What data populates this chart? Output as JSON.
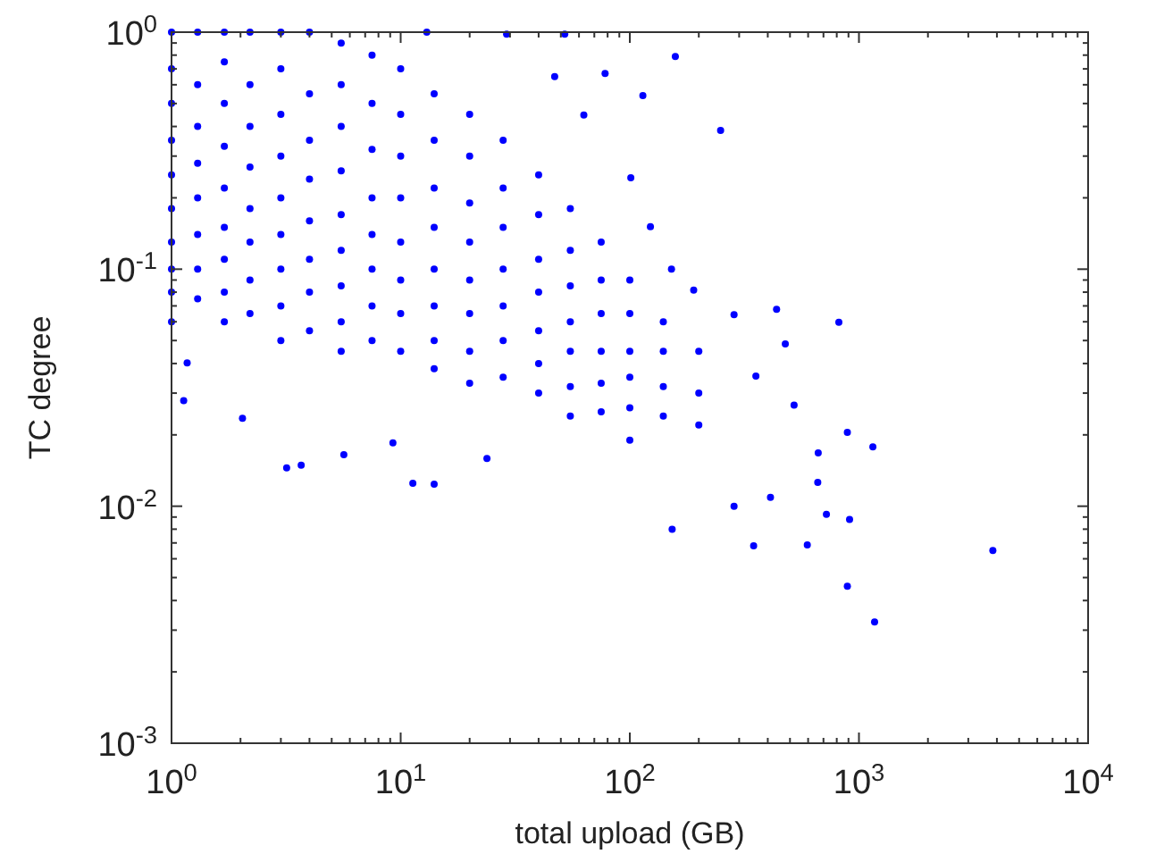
{
  "chart_data": {
    "type": "scatter",
    "xlabel": "total upload (GB)",
    "ylabel": "TC degree",
    "log": "xy",
    "marker": "circle",
    "color": "#0000ff",
    "xlim": [
      1,
      10000
    ],
    "ylim": [
      0.001,
      1
    ],
    "xticks": [
      {
        "value": 1,
        "label": "10$^{0}$"
      },
      {
        "value": 2,
        "label": null
      },
      {
        "value": 3,
        "label": null
      },
      {
        "value": 4,
        "label": null
      },
      {
        "value": 5,
        "label": null
      },
      {
        "value": 6,
        "label": null
      },
      {
        "value": 7,
        "label": null
      },
      {
        "value": 8,
        "label": null
      },
      {
        "value": 9,
        "label": null
      },
      {
        "value": 10,
        "label": "10$^{1}$"
      },
      {
        "value": 20,
        "label": null
      },
      {
        "value": 30,
        "label": null
      },
      {
        "value": 40,
        "label": null
      },
      {
        "value": 50,
        "label": null
      },
      {
        "value": 60,
        "label": null
      },
      {
        "value": 70,
        "label": null
      },
      {
        "value": 80,
        "label": null
      },
      {
        "value": 90,
        "label": null
      },
      {
        "value": 100,
        "label": "10$^{2}$"
      },
      {
        "value": 200,
        "label": null
      },
      {
        "value": 300,
        "label": null
      },
      {
        "value": 400,
        "label": null
      },
      {
        "value": 500,
        "label": null
      },
      {
        "value": 600,
        "label": null
      },
      {
        "value": 700,
        "label": null
      },
      {
        "value": 800,
        "label": null
      },
      {
        "value": 900,
        "label": null
      },
      {
        "value": 1000,
        "label": "10$^{3}$"
      },
      {
        "value": 2000,
        "label": null
      },
      {
        "value": 3000,
        "label": null
      },
      {
        "value": 4000,
        "label": null
      },
      {
        "value": 5000,
        "label": null
      },
      {
        "value": 6000,
        "label": null
      },
      {
        "value": 7000,
        "label": null
      },
      {
        "value": 8000,
        "label": null
      },
      {
        "value": 9000,
        "label": null
      },
      {
        "value": 10000,
        "label": "10$^{4}$"
      }
    ],
    "yticks": [
      {
        "value": 0.001,
        "label": "10$^{-3}$"
      },
      {
        "value": 0.002,
        "label": null
      },
      {
        "value": 0.003,
        "label": null
      },
      {
        "value": 0.004,
        "label": null
      },
      {
        "value": 0.005,
        "label": null
      },
      {
        "value": 0.006,
        "label": null
      },
      {
        "value": 0.007,
        "label": null
      },
      {
        "value": 0.008,
        "label": null
      },
      {
        "value": 0.009,
        "label": null
      },
      {
        "value": 0.01,
        "label": "10$^{-2}$"
      },
      {
        "value": 0.02,
        "label": null
      },
      {
        "value": 0.03,
        "label": null
      },
      {
        "value": 0.04,
        "label": null
      },
      {
        "value": 0.05,
        "label": null
      },
      {
        "value": 0.06,
        "label": null
      },
      {
        "value": 0.07,
        "label": null
      },
      {
        "value": 0.08,
        "label": null
      },
      {
        "value": 0.09,
        "label": null
      },
      {
        "value": 0.1,
        "label": "10$^{-1}$"
      },
      {
        "value": 0.2,
        "label": null
      },
      {
        "value": 0.3,
        "label": null
      },
      {
        "value": 0.4,
        "label": null
      },
      {
        "value": 0.5,
        "label": null
      },
      {
        "value": 0.6,
        "label": null
      },
      {
        "value": 0.7,
        "label": null
      },
      {
        "value": 0.8,
        "label": null
      },
      {
        "value": 0.9,
        "label": null
      },
      {
        "value": 1,
        "label": "10$^{0}$"
      }
    ],
    "x": [
      1,
      1,
      1,
      1,
      1,
      1,
      1,
      1,
      1,
      1,
      1.3,
      1.3,
      1.3,
      1.3,
      1.3,
      1.3,
      1.3,
      1.3,
      1.7,
      1.7,
      1.7,
      1.7,
      1.7,
      1.7,
      1.7,
      1.7,
      1.7,
      2.2,
      2.2,
      2.2,
      2.2,
      2.2,
      2.2,
      2.2,
      2.2,
      3,
      3,
      3,
      3,
      3,
      3,
      3,
      3,
      3,
      4,
      4,
      4,
      4,
      4,
      4,
      4,
      4,
      5.5,
      5.5,
      5.5,
      5.5,
      5.5,
      5.5,
      5.5,
      5.5,
      5.5,
      7.5,
      7.5,
      7.5,
      7.5,
      7.5,
      7.5,
      7.5,
      7.5,
      10,
      10,
      10,
      10,
      10,
      10,
      10,
      10,
      14,
      14,
      14,
      14,
      14,
      14,
      14,
      14,
      20,
      20,
      20,
      20,
      20,
      20,
      20,
      20,
      28,
      28,
      28,
      28,
      28,
      28,
      28,
      40,
      40,
      40,
      40,
      40,
      40,
      40,
      55,
      55,
      55,
      55,
      55,
      55,
      55,
      75,
      75,
      75,
      75,
      75,
      75,
      100,
      100,
      100,
      100,
      100,
      100,
      140,
      140,
      140,
      140,
      200,
      200,
      200,
      3840,
      1170,
      890,
      910,
      1150,
      890,
      817,
      437,
      477,
      249,
      158,
      595,
      347,
      153,
      721,
      661,
      664,
      411,
      285,
      521,
      355,
      285,
      190,
      152,
      123,
      114,
      101,
      78,
      63,
      47,
      52,
      29,
      13,
      3.18,
      3.68,
      5.65,
      11.3,
      14,
      23.8,
      1.13,
      1.17,
      2.04,
      9.25
    ],
    "values": [
      1,
      0.7,
      0.5,
      0.35,
      0.25,
      0.18,
      0.13,
      0.1,
      0.08,
      0.06,
      1,
      0.6,
      0.4,
      0.28,
      0.2,
      0.14,
      0.1,
      0.075,
      1,
      0.75,
      0.5,
      0.33,
      0.22,
      0.15,
      0.11,
      0.08,
      0.06,
      1,
      0.6,
      0.4,
      0.27,
      0.18,
      0.13,
      0.09,
      0.065,
      1,
      0.7,
      0.45,
      0.3,
      0.2,
      0.14,
      0.1,
      0.07,
      0.05,
      1,
      0.55,
      0.35,
      0.24,
      0.16,
      0.11,
      0.08,
      0.055,
      0.9,
      0.6,
      0.4,
      0.26,
      0.17,
      0.12,
      0.085,
      0.06,
      0.045,
      0.8,
      0.5,
      0.32,
      0.2,
      0.14,
      0.1,
      0.07,
      0.05,
      0.7,
      0.45,
      0.3,
      0.2,
      0.13,
      0.09,
      0.065,
      0.045,
      0.55,
      0.35,
      0.22,
      0.15,
      0.1,
      0.07,
      0.05,
      0.038,
      0.45,
      0.3,
      0.19,
      0.13,
      0.09,
      0.065,
      0.045,
      0.033,
      0.35,
      0.22,
      0.15,
      0.1,
      0.07,
      0.05,
      0.035,
      0.25,
      0.17,
      0.11,
      0.08,
      0.055,
      0.04,
      0.03,
      0.18,
      0.12,
      0.085,
      0.06,
      0.045,
      0.032,
      0.024,
      0.13,
      0.09,
      0.065,
      0.045,
      0.033,
      0.025,
      0.09,
      0.065,
      0.045,
      0.035,
      0.026,
      0.019,
      0.06,
      0.045,
      0.032,
      0.024,
      0.045,
      0.03,
      0.022,
      0.0065,
      0.00325,
      0.0046,
      0.0088,
      0.0178,
      0.0205,
      0.0597,
      0.0677,
      0.0484,
      0.385,
      0.79,
      0.00686,
      0.0068,
      0.008,
      0.00924,
      0.0126,
      0.0168,
      0.0109,
      0.01,
      0.0267,
      0.0354,
      0.0643,
      0.0816,
      0.1,
      0.151,
      0.54,
      0.243,
      0.67,
      0.447,
      0.65,
      0.98,
      0.98,
      1,
      0.0145,
      0.0149,
      0.0165,
      0.0125,
      0.0124,
      0.0159,
      0.0279,
      0.0402,
      0.0235,
      0.0185
    ]
  }
}
